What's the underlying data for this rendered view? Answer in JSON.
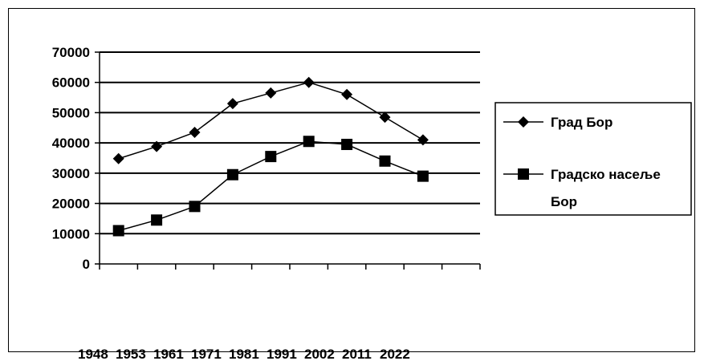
{
  "chart_data": {
    "type": "line",
    "categories": [
      "1948",
      "1953",
      "1961",
      "1971",
      "1981",
      "1991",
      "2002",
      "2011",
      "2022"
    ],
    "series": [
      {
        "name": "Град Бор",
        "marker": "diamond",
        "values": [
          34800,
          38800,
          43500,
          53000,
          56500,
          60000,
          56000,
          48500,
          41000
        ]
      },
      {
        "name": "Градско насеље Бор",
        "marker": "square",
        "values": [
          11000,
          14500,
          19000,
          29500,
          35500,
          40500,
          39500,
          34000,
          29000
        ]
      }
    ],
    "yticks": [
      "0",
      "10000",
      "20000",
      "30000",
      "40000",
      "50000",
      "60000",
      "70000"
    ],
    "ylim": [
      0,
      70000
    ],
    "grid": true,
    "legend_position": "right",
    "colors": {
      "line": "#000000",
      "grid": "#000000"
    }
  }
}
